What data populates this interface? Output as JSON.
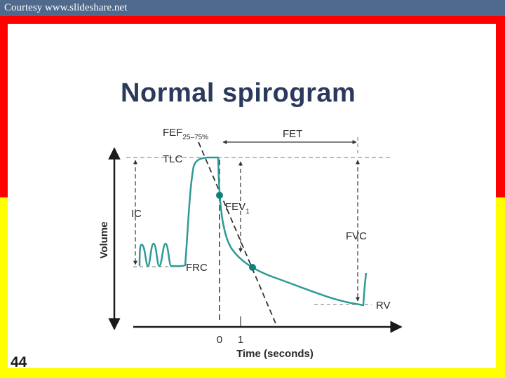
{
  "header": {
    "courtesy": "Courtesy www.slideshare.net"
  },
  "slide": {
    "title": "Normal spirogram",
    "number": "44"
  },
  "diagram": {
    "labels": {
      "fef": "FEF",
      "fef_sub": "25–75%",
      "fet": "FET",
      "tlc": "TLC",
      "ic": "IC",
      "fev": "FEV",
      "fev_sub": "1",
      "fvc": "FVC",
      "frc": "FRC",
      "rv": "RV",
      "volume": "Volume",
      "tick_0": "0",
      "tick_1": "1",
      "time_axis": "Time (seconds)"
    }
  },
  "colors": {
    "curve": "#2e9a96",
    "point": "#137f7b",
    "axis": "#1a1a1a",
    "dash": "#777777"
  }
}
